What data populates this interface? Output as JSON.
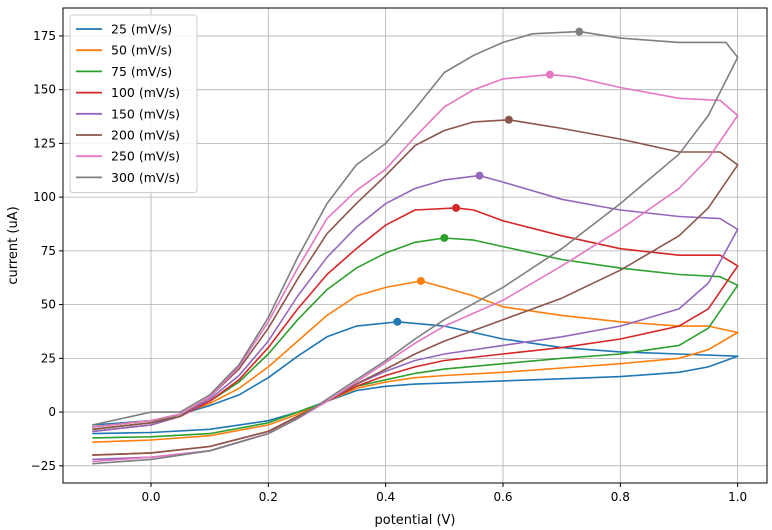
{
  "chart_data": {
    "type": "line",
    "title": "",
    "xlabel": "potential (V)",
    "ylabel": "current (uA)",
    "xlim": [
      -0.15,
      1.05
    ],
    "ylim": [
      -33,
      188
    ],
    "xticks": [
      0.0,
      0.2,
      0.4,
      0.6,
      0.8,
      1.0
    ],
    "xtick_labels": [
      "0.0",
      "0.2",
      "0.4",
      "0.6",
      "0.8",
      "1.0"
    ],
    "yticks": [
      -25,
      0,
      25,
      50,
      75,
      100,
      125,
      150,
      175
    ],
    "ytick_labels": [
      "−25",
      "0",
      "25",
      "50",
      "75",
      "100",
      "125",
      "150",
      "175"
    ],
    "grid": true,
    "legend_position": "top-left",
    "series": [
      {
        "name": "25 (mV/s)",
        "color": "#1f77b4",
        "peak": [
          0.42,
          42
        ],
        "forward": [
          [
            -0.1,
            -10
          ],
          [
            0.0,
            -9.5
          ],
          [
            0.1,
            -8
          ],
          [
            0.2,
            -4
          ],
          [
            0.25,
            0
          ],
          [
            0.3,
            5
          ],
          [
            0.35,
            10
          ],
          [
            0.4,
            12
          ],
          [
            0.45,
            13
          ],
          [
            0.5,
            13.5
          ],
          [
            0.6,
            14.5
          ],
          [
            0.7,
            15.5
          ],
          [
            0.8,
            16.5
          ],
          [
            0.9,
            18.5
          ],
          [
            0.95,
            21
          ],
          [
            1.0,
            26
          ]
        ],
        "reverse": [
          [
            1.0,
            26
          ],
          [
            0.9,
            27
          ],
          [
            0.8,
            28
          ],
          [
            0.7,
            30
          ],
          [
            0.6,
            34
          ],
          [
            0.55,
            37
          ],
          [
            0.5,
            40
          ],
          [
            0.42,
            42
          ],
          [
            0.35,
            40
          ],
          [
            0.3,
            35
          ],
          [
            0.25,
            26
          ],
          [
            0.2,
            16
          ],
          [
            0.15,
            8
          ],
          [
            0.1,
            3
          ],
          [
            0.05,
            -1
          ],
          [
            0.0,
            -4
          ],
          [
            -0.1,
            -6
          ]
        ]
      },
      {
        "name": "50 (mV/s)",
        "color": "#ff7f0e",
        "peak": [
          0.46,
          61
        ],
        "forward": [
          [
            -0.1,
            -14
          ],
          [
            0.0,
            -13
          ],
          [
            0.1,
            -11
          ],
          [
            0.2,
            -6
          ],
          [
            0.25,
            -1
          ],
          [
            0.3,
            5
          ],
          [
            0.35,
            11
          ],
          [
            0.4,
            14
          ],
          [
            0.45,
            16
          ],
          [
            0.5,
            17
          ],
          [
            0.6,
            18.5
          ],
          [
            0.7,
            20.5
          ],
          [
            0.8,
            22.5
          ],
          [
            0.9,
            25
          ],
          [
            0.95,
            29
          ],
          [
            1.0,
            37
          ]
        ],
        "reverse": [
          [
            1.0,
            37
          ],
          [
            0.95,
            40
          ],
          [
            0.9,
            40
          ],
          [
            0.8,
            42
          ],
          [
            0.7,
            45
          ],
          [
            0.6,
            49
          ],
          [
            0.55,
            54
          ],
          [
            0.5,
            58
          ],
          [
            0.46,
            61
          ],
          [
            0.4,
            58
          ],
          [
            0.35,
            54
          ],
          [
            0.3,
            45
          ],
          [
            0.25,
            33
          ],
          [
            0.2,
            21
          ],
          [
            0.15,
            11
          ],
          [
            0.1,
            4
          ],
          [
            0.05,
            -1
          ],
          [
            0.0,
            -4
          ],
          [
            -0.1,
            -7
          ]
        ]
      },
      {
        "name": "75 (mV/s)",
        "color": "#2ca02c",
        "peak": [
          0.5,
          81
        ],
        "forward": [
          [
            -0.1,
            -12
          ],
          [
            0.0,
            -11.5
          ],
          [
            0.1,
            -10
          ],
          [
            0.2,
            -5
          ],
          [
            0.25,
            0
          ],
          [
            0.3,
            5
          ],
          [
            0.35,
            12
          ],
          [
            0.4,
            15
          ],
          [
            0.45,
            18
          ],
          [
            0.5,
            20
          ],
          [
            0.6,
            22.5
          ],
          [
            0.7,
            25
          ],
          [
            0.8,
            27
          ],
          [
            0.9,
            31
          ],
          [
            0.95,
            39
          ],
          [
            1.0,
            59
          ]
        ],
        "reverse": [
          [
            1.0,
            59
          ],
          [
            0.97,
            63
          ],
          [
            0.9,
            64
          ],
          [
            0.8,
            67
          ],
          [
            0.7,
            71
          ],
          [
            0.6,
            77
          ],
          [
            0.55,
            80
          ],
          [
            0.5,
            81
          ],
          [
            0.45,
            79
          ],
          [
            0.4,
            74
          ],
          [
            0.35,
            67
          ],
          [
            0.3,
            57
          ],
          [
            0.25,
            43
          ],
          [
            0.2,
            27
          ],
          [
            0.15,
            14
          ],
          [
            0.1,
            5
          ],
          [
            0.05,
            -1
          ],
          [
            0.0,
            -5
          ],
          [
            -0.1,
            -8
          ]
        ]
      },
      {
        "name": "100 (mV/s)",
        "color": "#d62728",
        "peak": [
          0.52,
          95
        ],
        "forward": [
          [
            -0.1,
            -20
          ],
          [
            0.0,
            -19
          ],
          [
            0.1,
            -16
          ],
          [
            0.2,
            -9
          ],
          [
            0.25,
            -2
          ],
          [
            0.3,
            5
          ],
          [
            0.35,
            12
          ],
          [
            0.4,
            17
          ],
          [
            0.45,
            21
          ],
          [
            0.5,
            24
          ],
          [
            0.6,
            27
          ],
          [
            0.7,
            30
          ],
          [
            0.8,
            34
          ],
          [
            0.9,
            40
          ],
          [
            0.95,
            48
          ],
          [
            1.0,
            68
          ]
        ],
        "reverse": [
          [
            1.0,
            68
          ],
          [
            0.97,
            73
          ],
          [
            0.9,
            73
          ],
          [
            0.8,
            76
          ],
          [
            0.7,
            82
          ],
          [
            0.6,
            89
          ],
          [
            0.55,
            94
          ],
          [
            0.52,
            95
          ],
          [
            0.45,
            94
          ],
          [
            0.4,
            87
          ],
          [
            0.35,
            76
          ],
          [
            0.3,
            64
          ],
          [
            0.25,
            48
          ],
          [
            0.2,
            30
          ],
          [
            0.15,
            15
          ],
          [
            0.1,
            5
          ],
          [
            0.05,
            -2
          ],
          [
            0.0,
            -6
          ],
          [
            -0.1,
            -9
          ]
        ]
      },
      {
        "name": "150 (mV/s)",
        "color": "#9467bd",
        "peak": [
          0.56,
          110
        ],
        "forward": [
          [
            -0.1,
            -22
          ],
          [
            0.0,
            -21
          ],
          [
            0.1,
            -18
          ],
          [
            0.2,
            -10
          ],
          [
            0.25,
            -3
          ],
          [
            0.3,
            5
          ],
          [
            0.35,
            13
          ],
          [
            0.4,
            19
          ],
          [
            0.45,
            24
          ],
          [
            0.5,
            27
          ],
          [
            0.6,
            31
          ],
          [
            0.7,
            35
          ],
          [
            0.8,
            40
          ],
          [
            0.9,
            48
          ],
          [
            0.95,
            60
          ],
          [
            1.0,
            85
          ]
        ],
        "reverse": [
          [
            1.0,
            85
          ],
          [
            0.97,
            90
          ],
          [
            0.9,
            91
          ],
          [
            0.8,
            94
          ],
          [
            0.7,
            99
          ],
          [
            0.6,
            107
          ],
          [
            0.56,
            110
          ],
          [
            0.5,
            108
          ],
          [
            0.45,
            104
          ],
          [
            0.4,
            97
          ],
          [
            0.35,
            86
          ],
          [
            0.3,
            72
          ],
          [
            0.25,
            54
          ],
          [
            0.2,
            33
          ],
          [
            0.15,
            17
          ],
          [
            0.1,
            6
          ],
          [
            0.05,
            -2
          ],
          [
            0.0,
            -6
          ],
          [
            -0.1,
            -9
          ]
        ]
      },
      {
        "name": "200 (mV/s)",
        "color": "#8c564b",
        "peak": [
          0.61,
          136
        ],
        "forward": [
          [
            -0.1,
            -20
          ],
          [
            0.0,
            -19
          ],
          [
            0.1,
            -16
          ],
          [
            0.2,
            -9
          ],
          [
            0.25,
            -2
          ],
          [
            0.3,
            5
          ],
          [
            0.35,
            13
          ],
          [
            0.4,
            20
          ],
          [
            0.45,
            27
          ],
          [
            0.5,
            33
          ],
          [
            0.6,
            43
          ],
          [
            0.7,
            53
          ],
          [
            0.8,
            66
          ],
          [
            0.9,
            82
          ],
          [
            0.95,
            95
          ],
          [
            1.0,
            115
          ]
        ],
        "reverse": [
          [
            1.0,
            115
          ],
          [
            0.97,
            121
          ],
          [
            0.9,
            121
          ],
          [
            0.8,
            127
          ],
          [
            0.7,
            132
          ],
          [
            0.61,
            136
          ],
          [
            0.55,
            135
          ],
          [
            0.5,
            131
          ],
          [
            0.45,
            124
          ],
          [
            0.4,
            110
          ],
          [
            0.35,
            97
          ],
          [
            0.3,
            83
          ],
          [
            0.25,
            62
          ],
          [
            0.2,
            39
          ],
          [
            0.15,
            20
          ],
          [
            0.1,
            7
          ],
          [
            0.05,
            -2
          ],
          [
            0.0,
            -5
          ],
          [
            -0.1,
            -8
          ]
        ]
      },
      {
        "name": "250 (mV/s)",
        "color": "#e377c2",
        "peak": [
          0.68,
          157
        ],
        "forward": [
          [
            -0.1,
            -23
          ],
          [
            0.0,
            -21
          ],
          [
            0.1,
            -18
          ],
          [
            0.2,
            -10
          ],
          [
            0.25,
            -3
          ],
          [
            0.3,
            5
          ],
          [
            0.35,
            14
          ],
          [
            0.4,
            23
          ],
          [
            0.45,
            32
          ],
          [
            0.5,
            40
          ],
          [
            0.6,
            52
          ],
          [
            0.7,
            68
          ],
          [
            0.8,
            85
          ],
          [
            0.9,
            104
          ],
          [
            0.95,
            118
          ],
          [
            1.0,
            138
          ]
        ],
        "reverse": [
          [
            1.0,
            138
          ],
          [
            0.97,
            145
          ],
          [
            0.9,
            146
          ],
          [
            0.8,
            151
          ],
          [
            0.72,
            156
          ],
          [
            0.68,
            157
          ],
          [
            0.6,
            155
          ],
          [
            0.55,
            150
          ],
          [
            0.5,
            142
          ],
          [
            0.45,
            128
          ],
          [
            0.4,
            113
          ],
          [
            0.35,
            103
          ],
          [
            0.3,
            90
          ],
          [
            0.25,
            67
          ],
          [
            0.2,
            42
          ],
          [
            0.15,
            21
          ],
          [
            0.1,
            7
          ],
          [
            0.05,
            -1
          ],
          [
            0.0,
            -4
          ],
          [
            -0.1,
            -7
          ]
        ]
      },
      {
        "name": "300 (mV/s)",
        "color": "#7f7f7f",
        "peak": [
          0.73,
          177
        ],
        "forward": [
          [
            -0.1,
            -24
          ],
          [
            0.0,
            -22
          ],
          [
            0.1,
            -18
          ],
          [
            0.2,
            -10
          ],
          [
            0.25,
            -3
          ],
          [
            0.3,
            6
          ],
          [
            0.35,
            15
          ],
          [
            0.4,
            24
          ],
          [
            0.45,
            34
          ],
          [
            0.5,
            43
          ],
          [
            0.6,
            58
          ],
          [
            0.7,
            76
          ],
          [
            0.8,
            97
          ],
          [
            0.9,
            120
          ],
          [
            0.95,
            138
          ],
          [
            1.0,
            165
          ]
        ],
        "reverse": [
          [
            1.0,
            165
          ],
          [
            0.98,
            172
          ],
          [
            0.9,
            172
          ],
          [
            0.8,
            174
          ],
          [
            0.73,
            177
          ],
          [
            0.65,
            176
          ],
          [
            0.6,
            172
          ],
          [
            0.55,
            166
          ],
          [
            0.5,
            158
          ],
          [
            0.45,
            141
          ],
          [
            0.4,
            125
          ],
          [
            0.35,
            115
          ],
          [
            0.3,
            97
          ],
          [
            0.25,
            72
          ],
          [
            0.2,
            44
          ],
          [
            0.15,
            22
          ],
          [
            0.1,
            8
          ],
          [
            0.05,
            0
          ],
          [
            0.0,
            0
          ],
          [
            -0.1,
            -6
          ]
        ]
      }
    ]
  }
}
